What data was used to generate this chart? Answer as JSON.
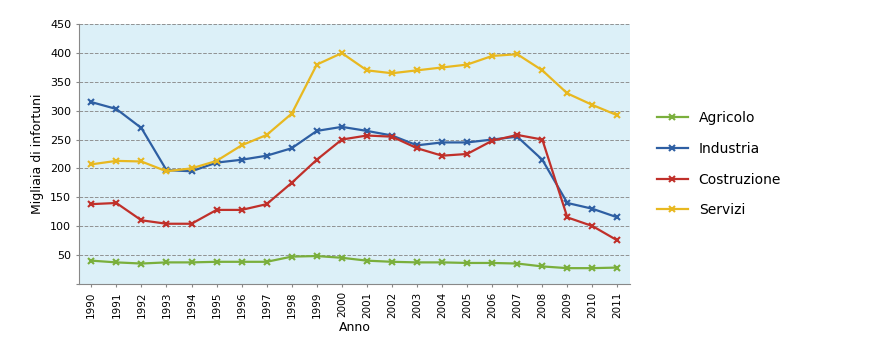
{
  "years": [
    1990,
    1991,
    1992,
    1993,
    1994,
    1995,
    1996,
    1997,
    1998,
    1999,
    2000,
    2001,
    2002,
    2003,
    2004,
    2005,
    2006,
    2007,
    2008,
    2009,
    2010,
    2011
  ],
  "agricolo": [
    40,
    37,
    35,
    37,
    37,
    38,
    38,
    38,
    47,
    48,
    45,
    40,
    38,
    37,
    37,
    36,
    36,
    35,
    30,
    27,
    27,
    28
  ],
  "industria": [
    315,
    303,
    270,
    197,
    195,
    210,
    215,
    222,
    235,
    265,
    272,
    265,
    257,
    240,
    245,
    245,
    250,
    255,
    215,
    140,
    130,
    115
  ],
  "costruzione": [
    138,
    140,
    110,
    104,
    104,
    128,
    128,
    138,
    175,
    215,
    250,
    257,
    255,
    235,
    222,
    225,
    248,
    258,
    250,
    115,
    100,
    75
  ],
  "servizi": [
    207,
    213,
    212,
    195,
    200,
    213,
    240,
    258,
    295,
    380,
    400,
    370,
    365,
    370,
    375,
    380,
    395,
    398,
    370,
    330,
    310,
    292
  ],
  "colors": {
    "agricolo": "#7AAF3C",
    "industria": "#2E5FA3",
    "costruzione": "#C0302A",
    "servizi": "#E8B820"
  },
  "ylabel": "Migliaia di infortuni",
  "xlabel": "Anno",
  "ylim": [
    0,
    450
  ],
  "yticks": [
    0,
    50,
    100,
    150,
    200,
    250,
    300,
    350,
    400,
    450
  ],
  "legend_labels": [
    "Agricolo",
    "Industria",
    "Costruzione",
    "Servizi"
  ],
  "fig_bg_color": "#FFFFFF",
  "plot_bg_color": "#DCF0F8",
  "legend_bg_color": "#FFFFFF"
}
